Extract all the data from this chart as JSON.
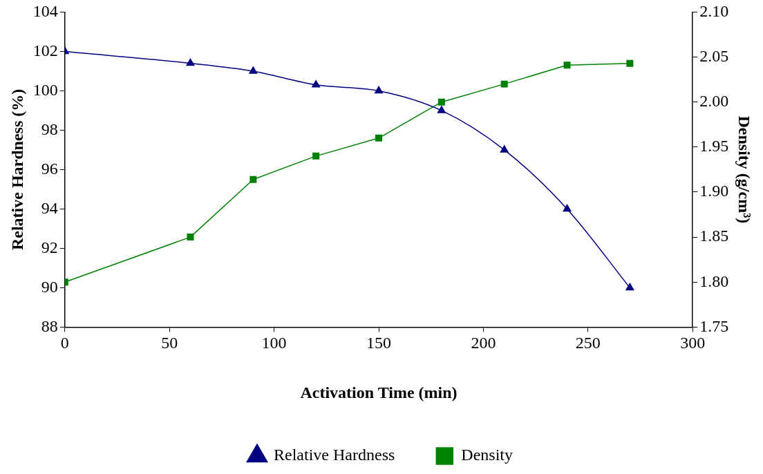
{
  "chart_data": {
    "type": "line",
    "xlabel": "Activation Time (min)",
    "ylabel": "Relative Hardness (%)",
    "y2label": "Density (g/cm³)",
    "x": [
      0,
      60,
      90,
      120,
      150,
      180,
      210,
      240,
      270
    ],
    "series": [
      {
        "name": "Relative Hardness",
        "color": "#000080",
        "marker": "triangle",
        "values": [
          102,
          101.4,
          101,
          100.3,
          100,
          99,
          97,
          94,
          90
        ]
      },
      {
        "name": "Density",
        "color": "#008000",
        "marker": "square",
        "axis": "y2",
        "values": [
          1.8,
          1.85,
          1.914,
          1.94,
          1.96,
          2.0,
          2.02,
          2.041,
          2.043
        ]
      }
    ],
    "xlim": [
      0,
      300
    ],
    "xticks": [
      0,
      50,
      100,
      150,
      200,
      250,
      300
    ],
    "ylim": [
      88,
      104
    ],
    "yticks": [
      88,
      90,
      92,
      94,
      96,
      98,
      100,
      102,
      104
    ],
    "y2lim": [
      1.75,
      2.1
    ],
    "y2ticks": [
      1.75,
      {
        "value": 1.8,
        "label": "1.80"
      },
      1.85,
      {
        "value": 1.9,
        "label": "1.90"
      },
      1.95,
      {
        "value": 2.0,
        "label": "2.00"
      },
      2.05,
      {
        "value": 2.1,
        "label": "2.10"
      }
    ],
    "legend": "bottom",
    "line_style": "solid"
  }
}
